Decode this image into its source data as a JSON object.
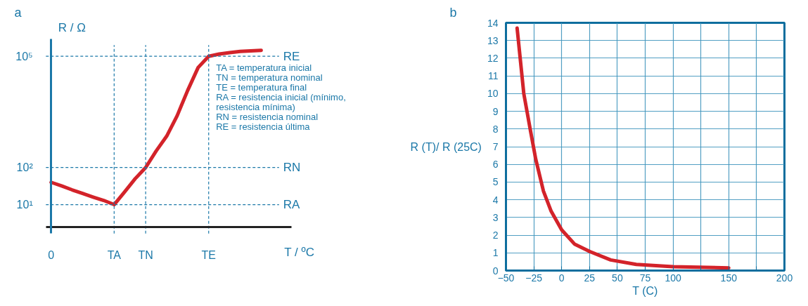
{
  "chart_data": [
    {
      "type": "line",
      "title": "a",
      "ylabel": "R / Ω",
      "xlabel": "T / ºC",
      "log": "y",
      "categories": [
        "0",
        null,
        null,
        null,
        null,
        null,
        "TA",
        null,
        null,
        "TN",
        null,
        null,
        null,
        null,
        null,
        "TE",
        null,
        null,
        null,
        null,
        null
      ],
      "series": [
        {
          "color": "#d3232a",
          "values": [
            40,
            32,
            25,
            20,
            16,
            13,
            10,
            22,
            50,
            100,
            280,
            700,
            2500,
            12000,
            50000,
            100000,
            115000,
            125000,
            135000,
            140000,
            145000
          ]
        }
      ],
      "ylim": [
        2.5,
        200000
      ],
      "yticks": [
        {
          "value": 10,
          "label": "10¹"
        },
        {
          "value": 100,
          "label": "10²"
        },
        {
          "value": 100000,
          "label": "10⁵"
        }
      ],
      "ref_lines": [
        {
          "axis": "y",
          "value": 100000,
          "label": "RE",
          "color": "#1b78a8",
          "line_style": "dashed"
        },
        {
          "axis": "y",
          "value": 100,
          "label": "RN",
          "color": "#1b78a8",
          "line_style": "dashed"
        },
        {
          "axis": "y",
          "value": 10,
          "label": "RA",
          "color": "#1b78a8",
          "line_style": "dashed"
        },
        {
          "axis": "x",
          "value": "TA",
          "label": null,
          "color": "#1b78a8",
          "line_style": "dashed"
        },
        {
          "axis": "x",
          "value": "TN",
          "label": null,
          "color": "#1b78a8",
          "line_style": "dashed"
        },
        {
          "axis": "x",
          "value": "TE",
          "label": null,
          "color": "#1b78a8",
          "line_style": "dashed"
        }
      ],
      "annotations": [
        "TA = temperatura inicial",
        "TN = temperatura nominal",
        "TE = temperatura final",
        "RA = resistencia inicial (mínimo,",
        "resistencia mínima)",
        "RN = resistencia nominal",
        "RE = resistencia última"
      ],
      "grid": false,
      "line_style": "solid"
    },
    {
      "type": "line",
      "title": "b",
      "ylabel": "R (T)/ R (25C)",
      "xlabel": "T (C)",
      "x": [
        -40,
        -34,
        -28,
        -23.3,
        -16.4,
        -9.4,
        0,
        11.5,
        25.4,
        44,
        67,
        100,
        150
      ],
      "series": [
        {
          "color": "#d3232a",
          "values": [
            13.7,
            10,
            7.9,
            6.3,
            4.5,
            3.35,
            2.3,
            1.5,
            1.07,
            0.6,
            0.35,
            0.22,
            0.15
          ]
        }
      ],
      "xlim": [
        -50,
        200
      ],
      "xticks": [
        -50,
        -25,
        0,
        25,
        50,
        75,
        100,
        {
          "value": 125,
          "label": null
        },
        150,
        {
          "value": 175,
          "label": null
        },
        200
      ],
      "ylim": [
        0,
        14
      ],
      "yticks": [
        0,
        1,
        2,
        3,
        4,
        5,
        6,
        7,
        8,
        9,
        10,
        11,
        12,
        13,
        14
      ],
      "grid": true,
      "line_style": "solid"
    }
  ]
}
